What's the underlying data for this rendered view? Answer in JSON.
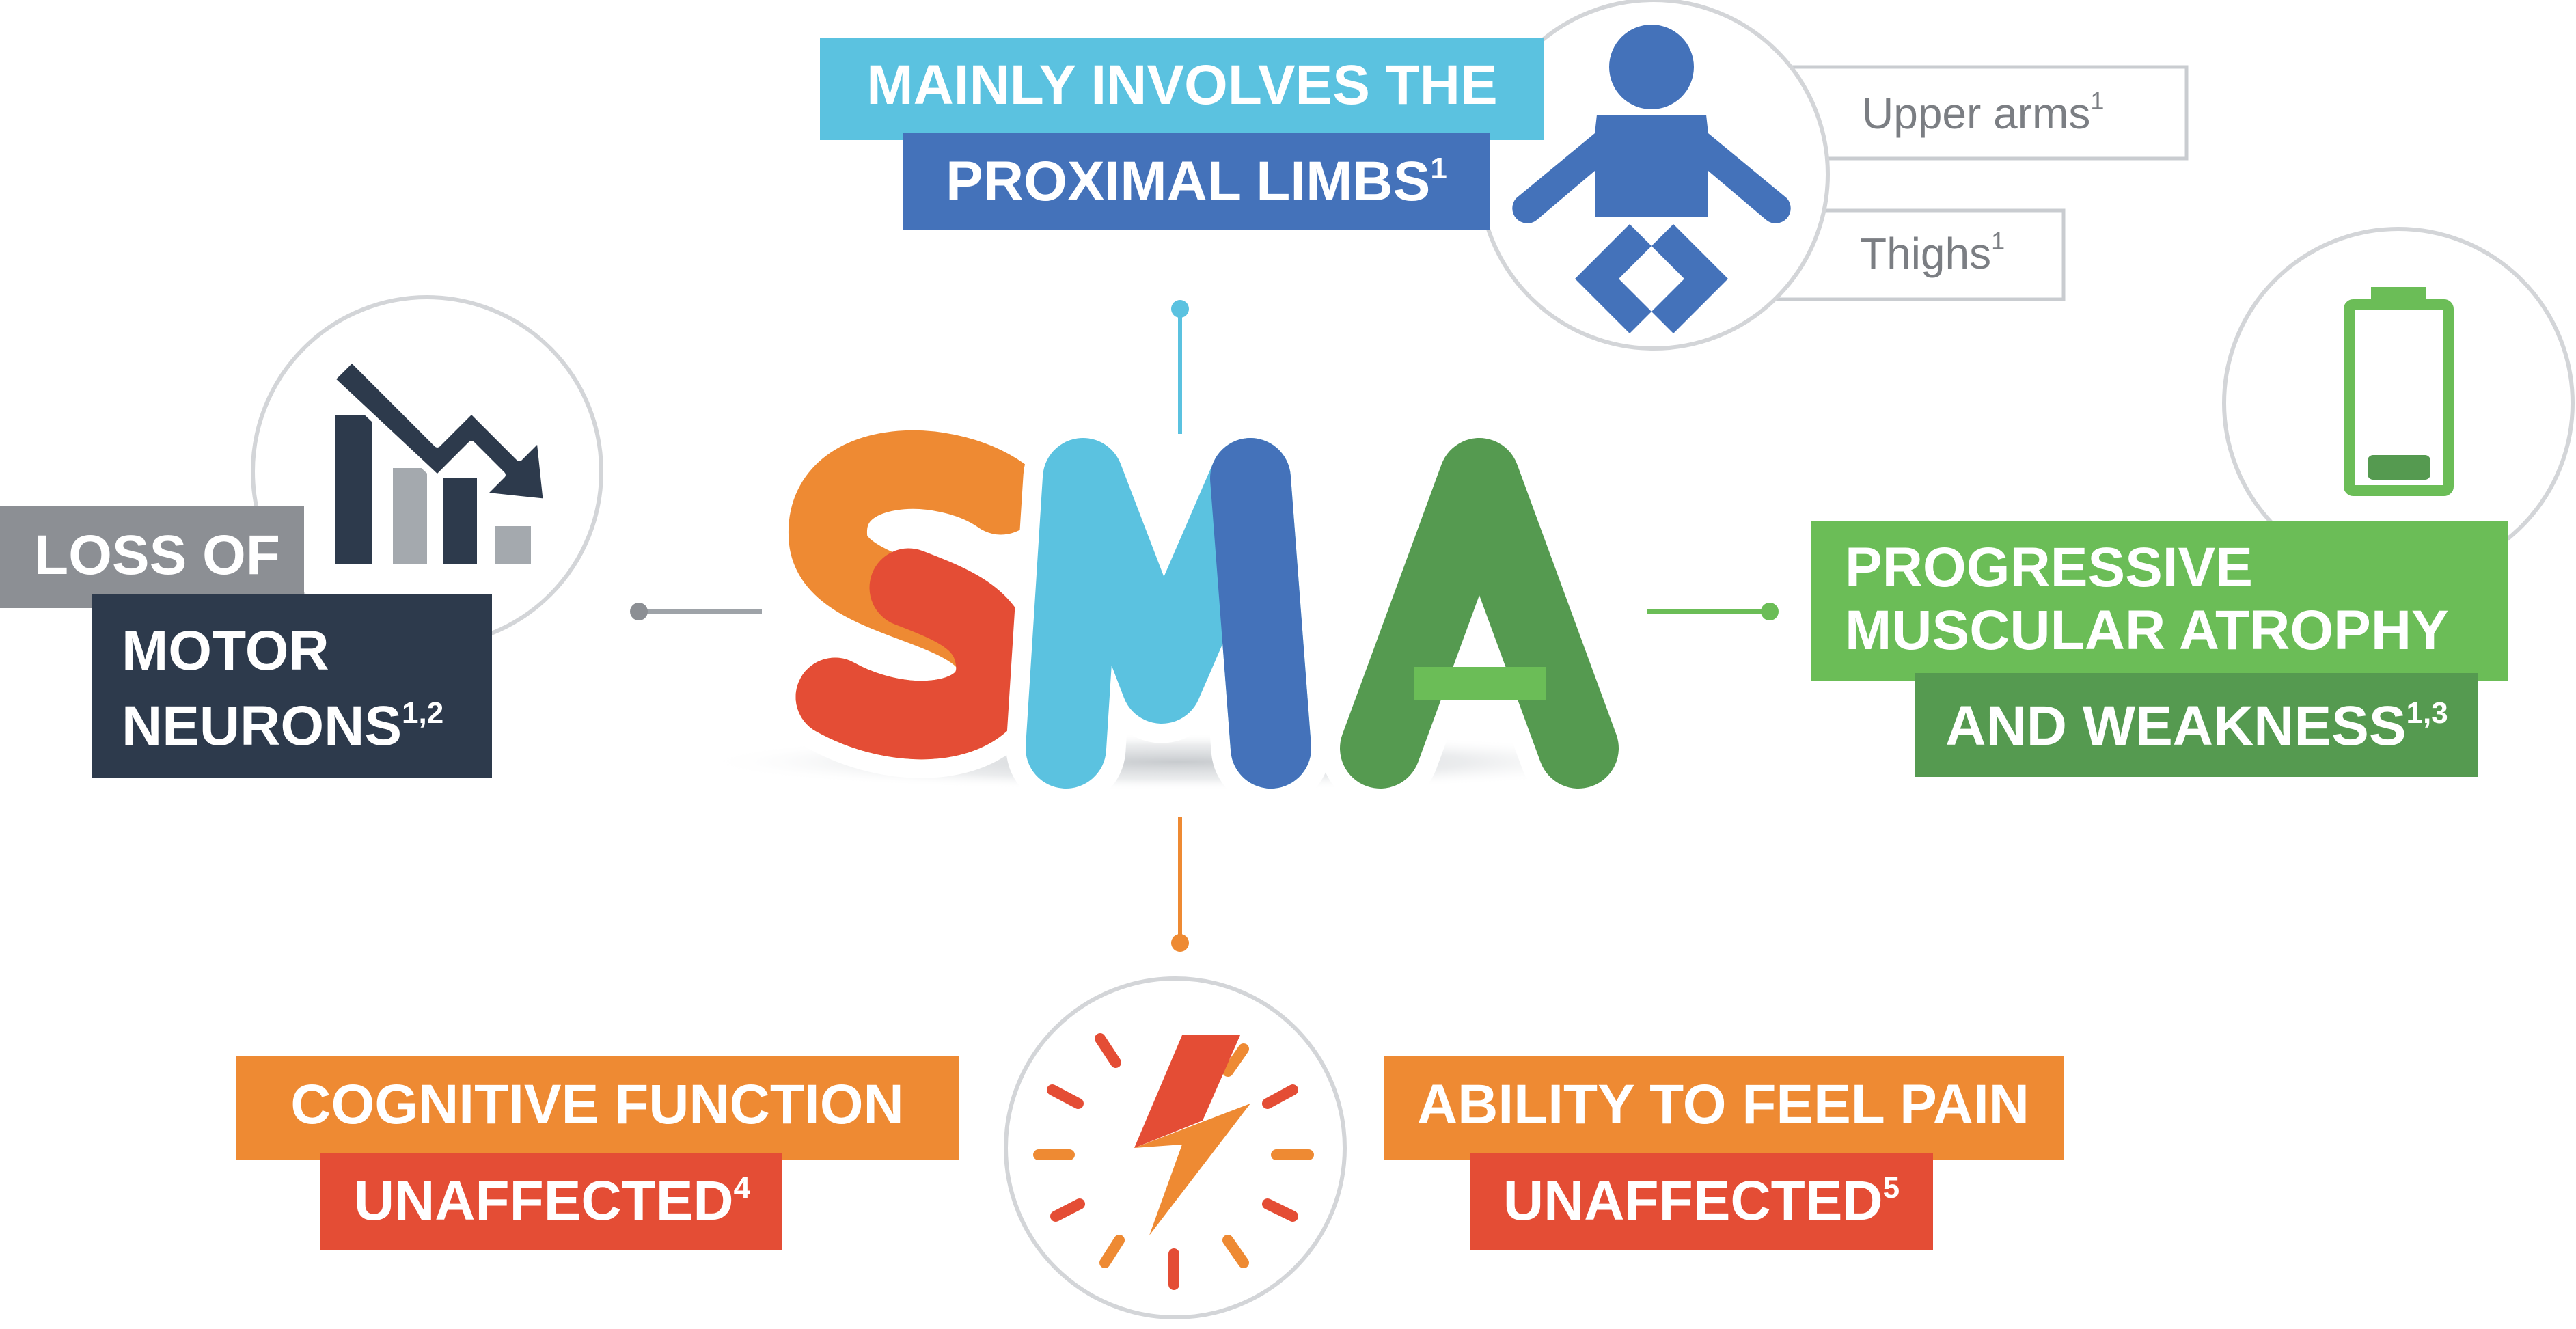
{
  "colors": {
    "cyan": "#5bc2e0",
    "blue": "#4472ba",
    "navy": "#2d3a4c",
    "gray": "#8c8f94",
    "green_light": "#6bbd57",
    "green_dark": "#559a50",
    "orange": "#ee8a33",
    "red": "#e44d35"
  },
  "center": {
    "logo_letters": [
      "S",
      "M",
      "A"
    ]
  },
  "top": {
    "line1": "MAINLY INVOLVES THE",
    "line2": "PROXIMAL LIMBS",
    "line2_sup": "1",
    "icon": "baby-icon",
    "tags": [
      {
        "label": "Upper arms",
        "sup": "1"
      },
      {
        "label": "Thighs",
        "sup": "1"
      }
    ]
  },
  "left": {
    "line1": "LOSS OF",
    "line2": "MOTOR",
    "line3": "NEURONS",
    "line3_sup": "1,2",
    "icon": "declining-chart-icon"
  },
  "right": {
    "line1": "PROGRESSIVE",
    "line2": "MUSCULAR ATROPHY",
    "line3": "AND WEAKNESS",
    "line3_sup": "1,3",
    "icon": "low-battery-icon"
  },
  "bottom": {
    "icon": "lightning-bolt-icon",
    "left_line1": "COGNITIVE FUNCTION",
    "left_line2": "UNAFFECTED",
    "left_line2_sup": "4",
    "right_line1": "ABILITY TO FEEL PAIN",
    "right_line2": "UNAFFECTED",
    "right_line2_sup": "5"
  }
}
